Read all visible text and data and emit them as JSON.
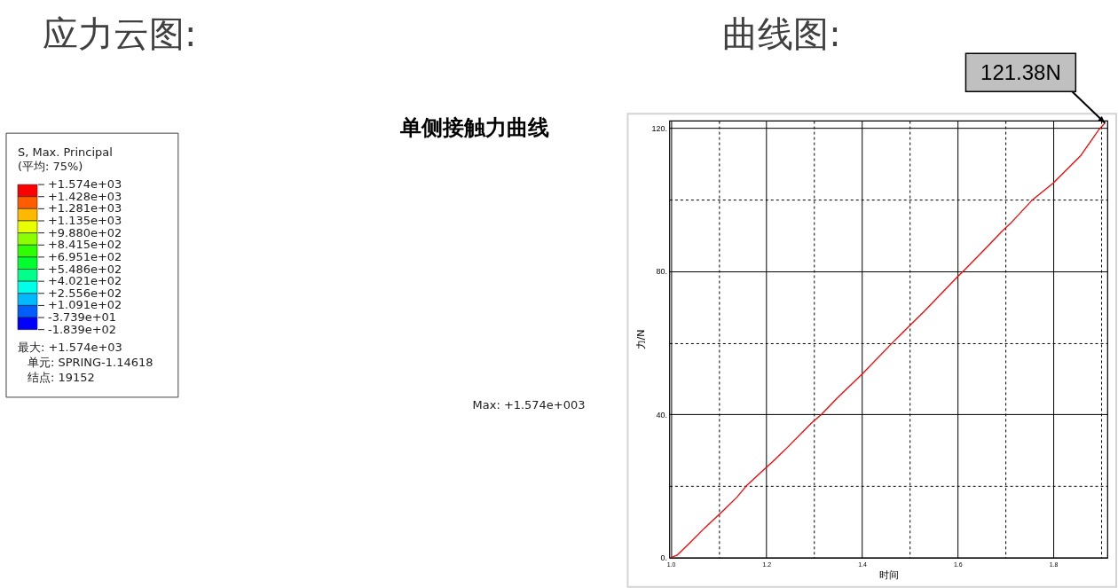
{
  "chart_data": [
    {
      "type": "other",
      "title": "应力云图:",
      "legend_title": "S, Max. Principal\n(平均: 75%)",
      "categories": [
        "+1.574e+03",
        "+1.428e+03",
        "+1.281e+03",
        "+1.135e+03",
        "+9.880e+02",
        "+8.415e+02",
        "+6.951e+02",
        "+5.486e+02",
        "+4.021e+02",
        "+2.556e+02",
        "+1.091e+02",
        "-3.739e+01",
        "-1.839e+02"
      ],
      "colors": [
        "#ff0000",
        "#ff5d00",
        "#ffb900",
        "#e8ff00",
        "#8bff00",
        "#2eff00",
        "#00ff2e",
        "#00ff8b",
        "#00ffe8",
        "#00b9ff",
        "#005dff",
        "#0000ff"
      ],
      "annotations": [
        "最大: +1.574e+03",
        "单元: SPRING-1.14618",
        "结点: 19152",
        "Max: +1.574e+003"
      ]
    },
    {
      "type": "line",
      "title": "曲线图:",
      "xlabel": "时间",
      "ylabel": "力/N",
      "xlim": [
        0.997,
        1.913
      ],
      "ylim": [
        0,
        122
      ],
      "xticks": [
        {
          "value": 1.0,
          "label": "1.0"
        },
        {
          "value": 1.1,
          "label": null
        },
        {
          "value": 1.2,
          "label": "1.2"
        },
        {
          "value": 1.3,
          "label": null
        },
        {
          "value": 1.4,
          "label": "1.4"
        },
        {
          "value": 1.5,
          "label": null
        },
        {
          "value": 1.6,
          "label": "1.6"
        },
        {
          "value": 1.7,
          "label": null
        },
        {
          "value": 1.8,
          "label": "1.8"
        },
        {
          "value": 1.9,
          "label": null
        }
      ],
      "yticks": [
        {
          "value": 0,
          "label": "0."
        },
        {
          "value": 20,
          "label": null
        },
        {
          "value": 40,
          "label": "40."
        },
        {
          "value": 60,
          "label": null
        },
        {
          "value": 80,
          "label": "80."
        },
        {
          "value": 100,
          "label": null
        },
        {
          "value": 120,
          "label": "120."
        }
      ],
      "grid": true,
      "series": [
        {
          "color": "#ff0000",
          "x": [
            1.0,
            1.013,
            1.037,
            1.07,
            1.111,
            1.139,
            1.159,
            1.189,
            1.212,
            1.244,
            1.295,
            1.315,
            1.348,
            1.401,
            1.464,
            1.504,
            1.53,
            1.6,
            1.613,
            1.663,
            1.693,
            1.713,
            1.756,
            1.799,
            1.858,
            1.881,
            1.895,
            1.908
          ],
          "values": [
            0,
            0.7,
            3.8,
            8.2,
            13.3,
            17.0,
            20.2,
            23.9,
            26.7,
            30.8,
            37.7,
            40.0,
            44.6,
            51.4,
            60.1,
            65.4,
            68.8,
            78.5,
            80.2,
            87.0,
            91.2,
            93.7,
            99.9,
            104.5,
            112.4,
            116.8,
            119.5,
            121.38
          ]
        }
      ],
      "annotations": [
        "单侧接触力曲线",
        {
          "text": "121.38N",
          "x": 1.908,
          "y": 121.38
        }
      ]
    }
  ]
}
